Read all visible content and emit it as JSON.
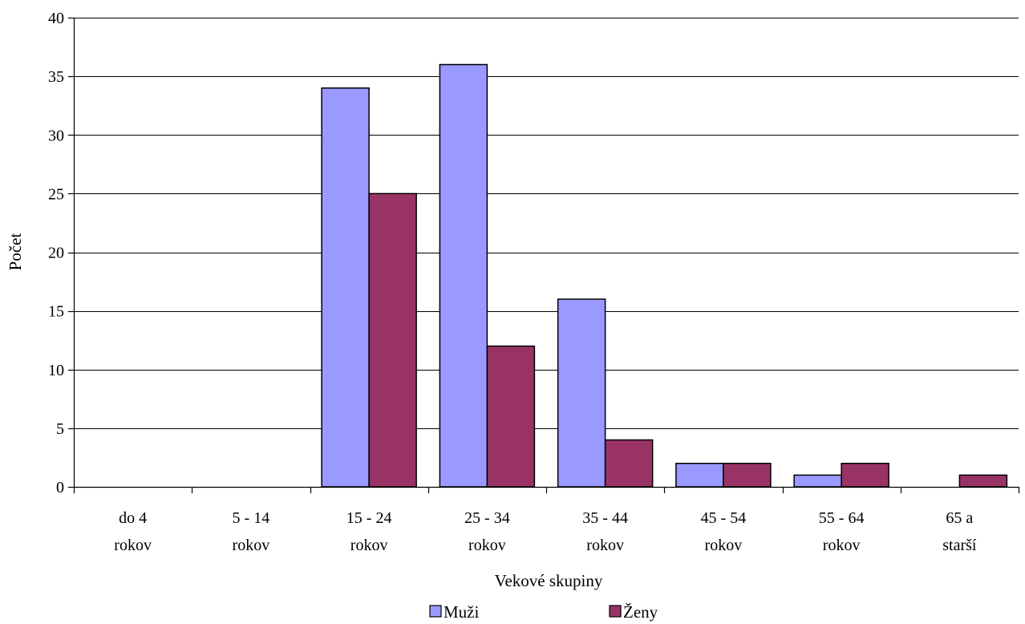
{
  "chart_data": {
    "type": "bar",
    "categories": [
      [
        "do 4",
        "rokov"
      ],
      [
        "5 - 14",
        "rokov"
      ],
      [
        "15 - 24",
        "rokov"
      ],
      [
        "25 - 34",
        "rokov"
      ],
      [
        "35 - 44",
        "rokov"
      ],
      [
        "45 - 54",
        "rokov"
      ],
      [
        "55 - 64",
        "rokov"
      ],
      [
        "65 a",
        "starší"
      ]
    ],
    "series": [
      {
        "name": "Muži",
        "color": "#9999FF",
        "values": [
          0,
          0,
          34,
          36,
          16,
          2,
          1,
          0
        ]
      },
      {
        "name": "Ženy",
        "color": "#993366",
        "values": [
          0,
          0,
          25,
          12,
          4,
          2,
          2,
          1
        ]
      }
    ],
    "xlabel": "Vekové skupiny",
    "ylabel": "Počet",
    "ylim": [
      0,
      40
    ],
    "yticks": [
      0,
      5,
      10,
      15,
      20,
      25,
      30,
      35,
      40
    ],
    "grid": true,
    "legend_position": "bottom"
  }
}
